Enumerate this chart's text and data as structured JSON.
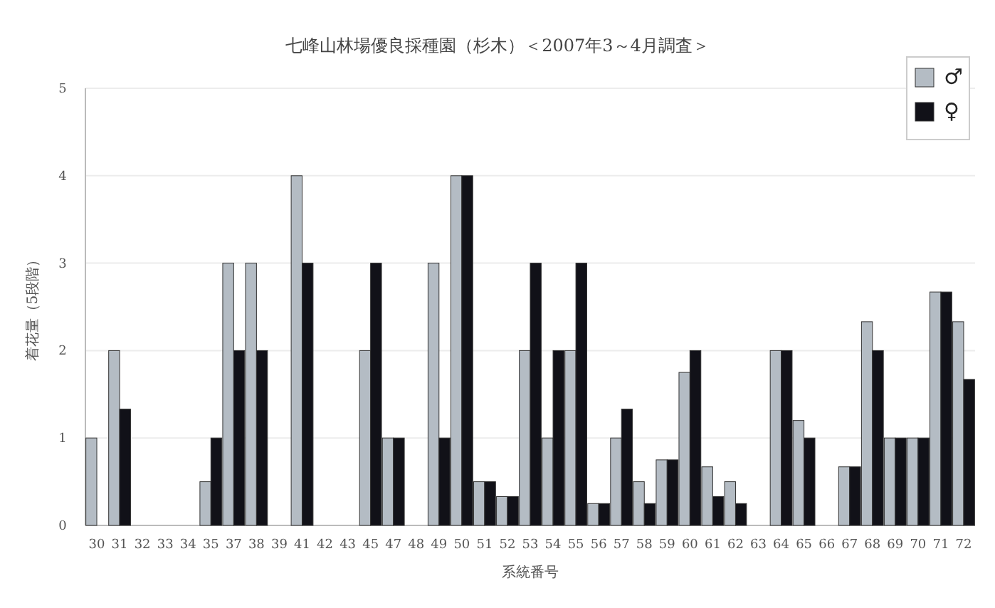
{
  "chart_data": {
    "type": "bar",
    "title": "七峰山林場優良採種園（杉木）＜2007年3～4月調査＞",
    "xlabel": "系統番号",
    "ylabel": "着花量（5段階）",
    "categories": [
      "30",
      "31",
      "32",
      "33",
      "34",
      "35",
      "37",
      "38",
      "39",
      "41",
      "42",
      "43",
      "45",
      "47",
      "48",
      "49",
      "50",
      "51",
      "52",
      "53",
      "54",
      "55",
      "56",
      "57",
      "58",
      "59",
      "60",
      "61",
      "62",
      "63",
      "64",
      "65",
      "66",
      "67",
      "68",
      "69",
      "70",
      "71",
      "72"
    ],
    "series": [
      {
        "name": "♂",
        "color": "#b4bcc4",
        "values": [
          1,
          2,
          null,
          null,
          null,
          0.5,
          3,
          3,
          null,
          4,
          null,
          null,
          2,
          1,
          null,
          3,
          4,
          0.5,
          0.33,
          2,
          1,
          2,
          0.25,
          1,
          0.5,
          0.75,
          1.75,
          0.67,
          0.5,
          null,
          2,
          1.2,
          null,
          0.67,
          2.33,
          1,
          1,
          2.67,
          2.33
        ]
      },
      {
        "name": "♀",
        "color": "#111118",
        "values": [
          null,
          1.33,
          null,
          null,
          null,
          1,
          2,
          2,
          null,
          3,
          null,
          null,
          3,
          1,
          null,
          1,
          4,
          0.5,
          0.33,
          3,
          2,
          3,
          0.25,
          1.33,
          0.25,
          0.75,
          2,
          0.33,
          0.25,
          null,
          2,
          1,
          null,
          0.67,
          2,
          1,
          1,
          2.67,
          1.67
        ]
      }
    ],
    "ylim": [
      0,
      5
    ],
    "yticks": [
      0,
      1,
      2,
      3,
      4,
      5
    ],
    "grid": "y",
    "legend": "top right"
  }
}
